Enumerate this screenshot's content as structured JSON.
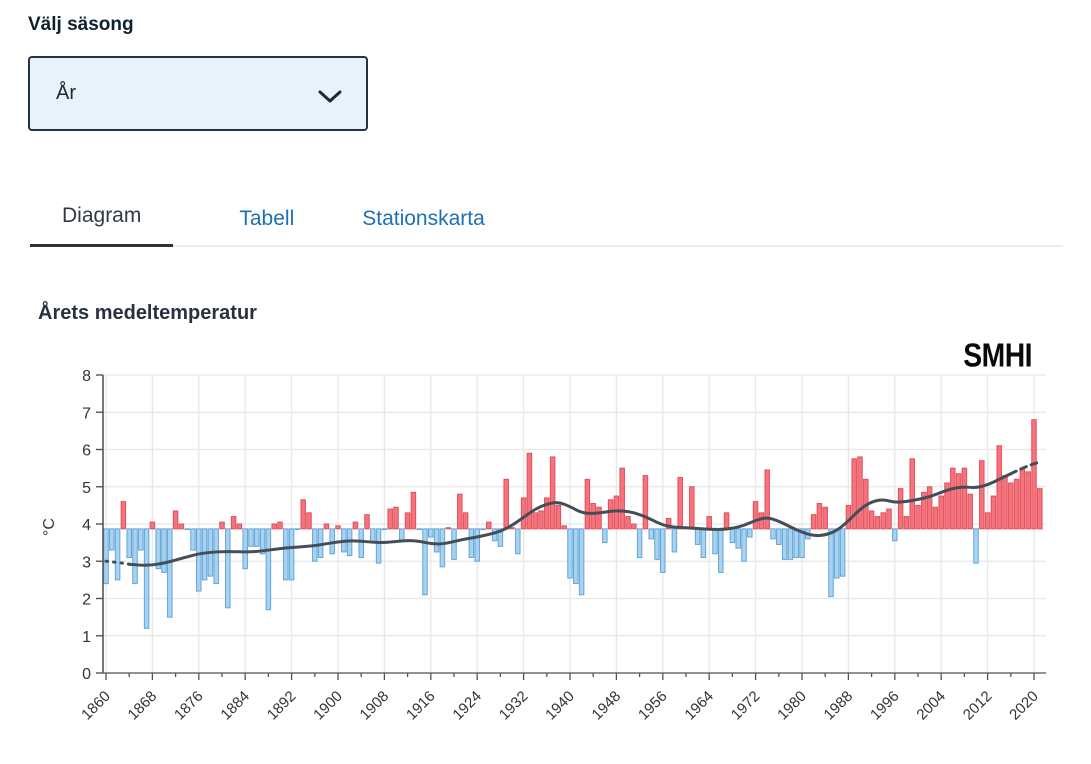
{
  "season": {
    "label": "Välj säsong",
    "selected_value": "År"
  },
  "tabs": [
    {
      "label": "Diagram",
      "active": true
    },
    {
      "label": "Tabell",
      "active": false
    },
    {
      "label": "Stationskarta",
      "active": false
    }
  ],
  "chart": {
    "title": "Årets medeltemperatur",
    "logo_text": "SMHI"
  },
  "chart_data": {
    "type": "bar",
    "title": "Årets medeltemperatur",
    "xlabel": "",
    "ylabel": "°C",
    "ylim": [
      0,
      8
    ],
    "y_ticks": [
      0,
      1,
      2,
      3,
      4,
      5,
      6,
      7,
      8
    ],
    "x_start": 1860,
    "x_end": 2021,
    "x_tick_labels": [
      1860,
      1868,
      1876,
      1884,
      1892,
      1900,
      1908,
      1916,
      1924,
      1932,
      1940,
      1948,
      1956,
      1964,
      1972,
      1980,
      1988,
      1996,
      2004,
      2012,
      2020
    ],
    "baseline": 3.87,
    "grid": true,
    "legend_position": "none",
    "bar_color_rule": "blue below baseline, red above baseline",
    "series": [
      {
        "name": "Årsmedeltemperatur",
        "values": [
          2.4,
          3.3,
          2.5,
          4.6,
          3.1,
          2.4,
          3.3,
          1.2,
          4.05,
          2.8,
          2.7,
          1.5,
          4.35,
          4.0,
          3.85,
          3.3,
          2.2,
          2.5,
          2.6,
          2.4,
          4.05,
          1.75,
          4.2,
          4.0,
          2.8,
          3.4,
          3.4,
          3.2,
          1.7,
          4.0,
          4.05,
          2.5,
          2.5,
          3.85,
          4.65,
          4.3,
          3.0,
          3.1,
          4.0,
          3.2,
          3.95,
          3.25,
          3.15,
          4.05,
          3.1,
          4.25,
          3.5,
          2.95,
          3.85,
          4.4,
          4.45,
          3.55,
          4.3,
          4.85,
          3.85,
          2.1,
          3.65,
          3.25,
          2.85,
          3.9,
          3.05,
          4.8,
          4.3,
          3.1,
          3.0,
          3.85,
          4.05,
          3.55,
          3.4,
          5.2,
          3.9,
          3.2,
          4.7,
          5.9,
          4.3,
          4.35,
          4.7,
          5.8,
          4.5,
          3.95,
          2.55,
          2.4,
          2.1,
          5.2,
          4.55,
          4.45,
          3.5,
          4.65,
          4.75,
          5.5,
          4.2,
          4.0,
          3.1,
          5.3,
          3.6,
          3.05,
          2.7,
          4.15,
          3.25,
          5.25,
          3.9,
          5.0,
          3.45,
          3.1,
          4.2,
          3.2,
          2.7,
          4.3,
          3.5,
          3.35,
          3.0,
          3.65,
          4.6,
          4.3,
          5.45,
          3.6,
          3.45,
          3.05,
          3.05,
          3.1,
          3.1,
          3.6,
          4.25,
          4.55,
          4.45,
          2.05,
          2.55,
          2.6,
          4.5,
          5.75,
          5.8,
          5.2,
          4.35,
          4.2,
          4.3,
          4.4,
          3.55,
          4.95,
          4.2,
          5.75,
          4.5,
          4.85,
          5.0,
          4.45,
          4.75,
          5.1,
          5.5,
          5.35,
          5.5,
          4.8,
          2.95,
          5.7,
          4.3,
          4.75,
          6.1,
          5.3,
          5.1,
          5.2,
          5.5,
          5.4,
          6.8,
          4.95
        ]
      },
      {
        "name": "Utjämnad trend",
        "style": "line",
        "points": [
          [
            1860,
            3.0
          ],
          [
            1862,
            2.97
          ],
          [
            1864,
            2.92
          ],
          [
            1866,
            2.89
          ],
          [
            1868,
            2.9
          ],
          [
            1870,
            2.95
          ],
          [
            1872,
            3.03
          ],
          [
            1874,
            3.12
          ],
          [
            1876,
            3.2
          ],
          [
            1878,
            3.24
          ],
          [
            1880,
            3.26
          ],
          [
            1882,
            3.26
          ],
          [
            1884,
            3.25
          ],
          [
            1886,
            3.26
          ],
          [
            1888,
            3.3
          ],
          [
            1890,
            3.34
          ],
          [
            1892,
            3.37
          ],
          [
            1894,
            3.39
          ],
          [
            1896,
            3.42
          ],
          [
            1898,
            3.47
          ],
          [
            1900,
            3.52
          ],
          [
            1902,
            3.55
          ],
          [
            1904,
            3.54
          ],
          [
            1906,
            3.51
          ],
          [
            1908,
            3.5
          ],
          [
            1910,
            3.53
          ],
          [
            1912,
            3.56
          ],
          [
            1914,
            3.54
          ],
          [
            1916,
            3.47
          ],
          [
            1918,
            3.46
          ],
          [
            1920,
            3.53
          ],
          [
            1922,
            3.6
          ],
          [
            1924,
            3.65
          ],
          [
            1926,
            3.72
          ],
          [
            1928,
            3.8
          ],
          [
            1930,
            3.96
          ],
          [
            1932,
            4.18
          ],
          [
            1934,
            4.4
          ],
          [
            1936,
            4.54
          ],
          [
            1938,
            4.59
          ],
          [
            1940,
            4.47
          ],
          [
            1942,
            4.3
          ],
          [
            1944,
            4.28
          ],
          [
            1946,
            4.32
          ],
          [
            1948,
            4.36
          ],
          [
            1950,
            4.34
          ],
          [
            1952,
            4.26
          ],
          [
            1954,
            4.12
          ],
          [
            1956,
            3.97
          ],
          [
            1958,
            3.91
          ],
          [
            1960,
            3.9
          ],
          [
            1962,
            3.88
          ],
          [
            1964,
            3.86
          ],
          [
            1966,
            3.85
          ],
          [
            1968,
            3.88
          ],
          [
            1970,
            3.96
          ],
          [
            1972,
            4.1
          ],
          [
            1974,
            4.18
          ],
          [
            1976,
            4.08
          ],
          [
            1978,
            3.92
          ],
          [
            1980,
            3.78
          ],
          [
            1982,
            3.68
          ],
          [
            1984,
            3.7
          ],
          [
            1986,
            3.82
          ],
          [
            1988,
            4.08
          ],
          [
            1990,
            4.4
          ],
          [
            1992,
            4.6
          ],
          [
            1994,
            4.66
          ],
          [
            1996,
            4.58
          ],
          [
            1998,
            4.6
          ],
          [
            2000,
            4.66
          ],
          [
            2002,
            4.73
          ],
          [
            2004,
            4.85
          ],
          [
            2006,
            4.96
          ],
          [
            2008,
            5.0
          ],
          [
            2010,
            4.97
          ],
          [
            2012,
            5.05
          ],
          [
            2014,
            5.2
          ],
          [
            2016,
            5.35
          ],
          [
            2018,
            5.5
          ],
          [
            2020,
            5.62
          ],
          [
            2021,
            5.66
          ]
        ],
        "dashed_before": 1865,
        "dashed_after": 2016
      }
    ],
    "colors": {
      "warm_fill": "#F5737D",
      "warm_stroke": "#E2505B",
      "cold_fill": "#A7D3F0",
      "cold_stroke": "#64A5D8",
      "trend_line": "#454E57",
      "gridline": "#E7E7E7",
      "axis_line": "#6E6E6E",
      "axis_text": "#333333"
    }
  }
}
